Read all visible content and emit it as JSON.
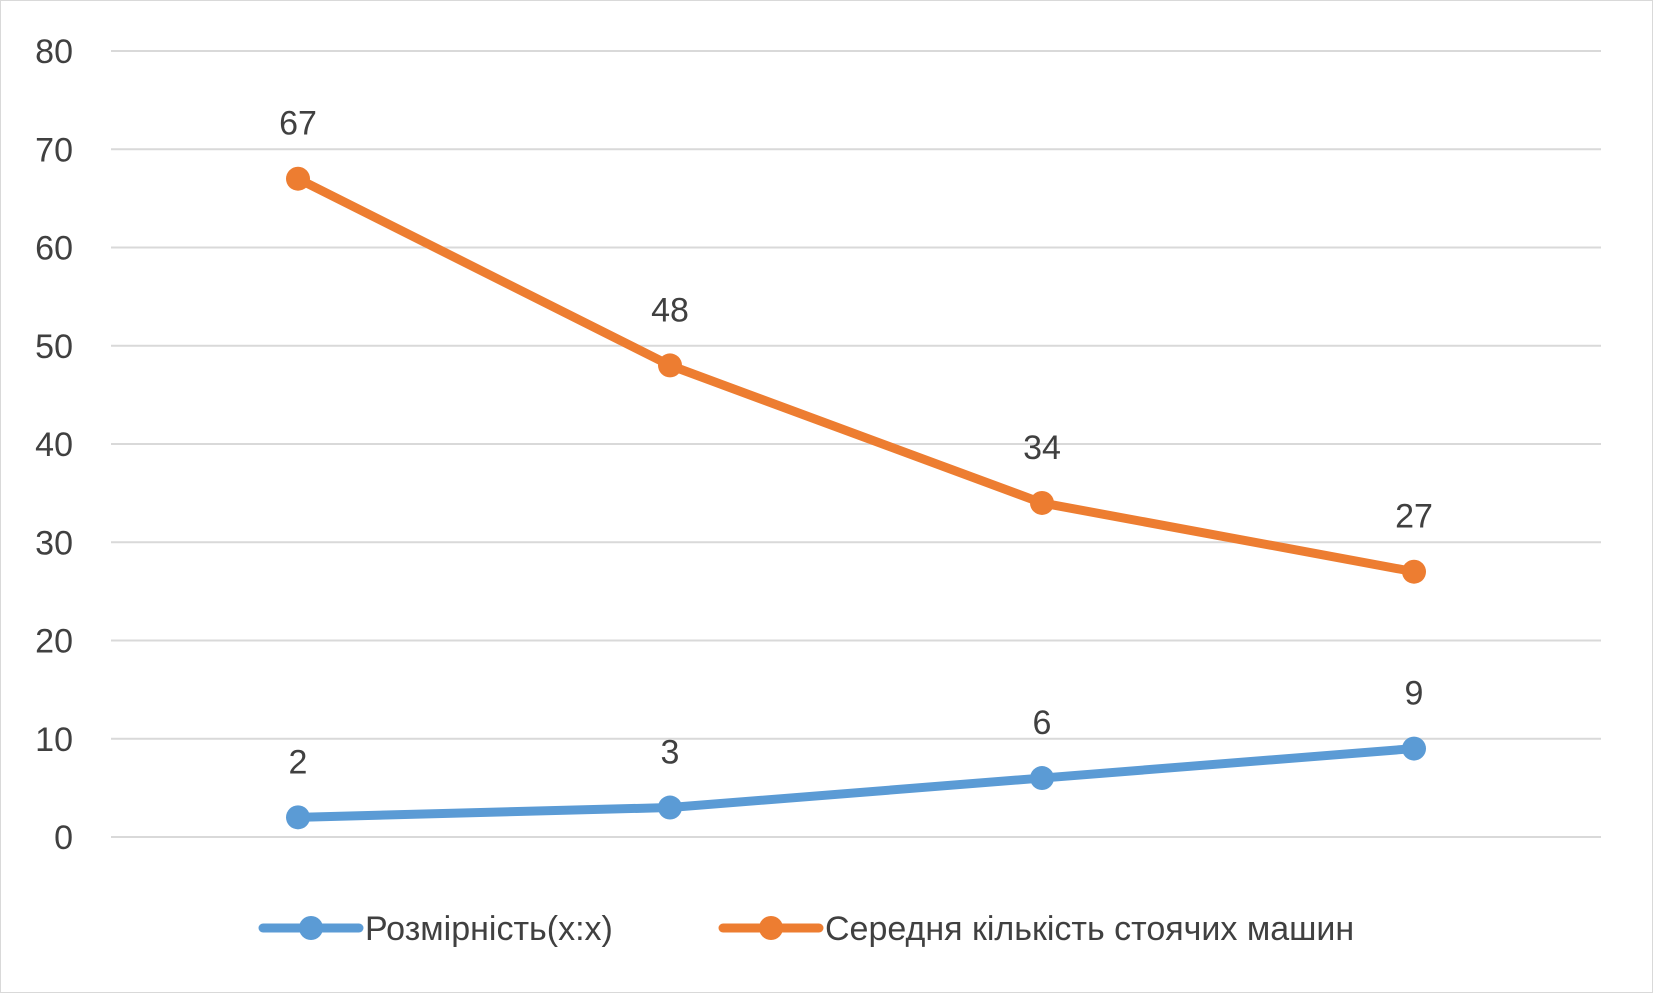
{
  "chart_data": {
    "type": "line",
    "categories": [
      "",
      "",
      "",
      ""
    ],
    "series": [
      {
        "name": "Розмірність(x:x)",
        "values": [
          2,
          3,
          6,
          9
        ],
        "color": "#5b9bd5"
      },
      {
        "name": "Середня кількість стоячих машин",
        "values": [
          67,
          48,
          34,
          27
        ],
        "color": "#ed7d31"
      }
    ],
    "title": "",
    "xlabel": "",
    "ylabel": "",
    "ylim": [
      0,
      80
    ],
    "yticks": [
      0,
      10,
      20,
      30,
      40,
      50,
      60,
      70,
      80
    ],
    "grid": true,
    "data_labels": true,
    "legend_position": "bottom"
  }
}
